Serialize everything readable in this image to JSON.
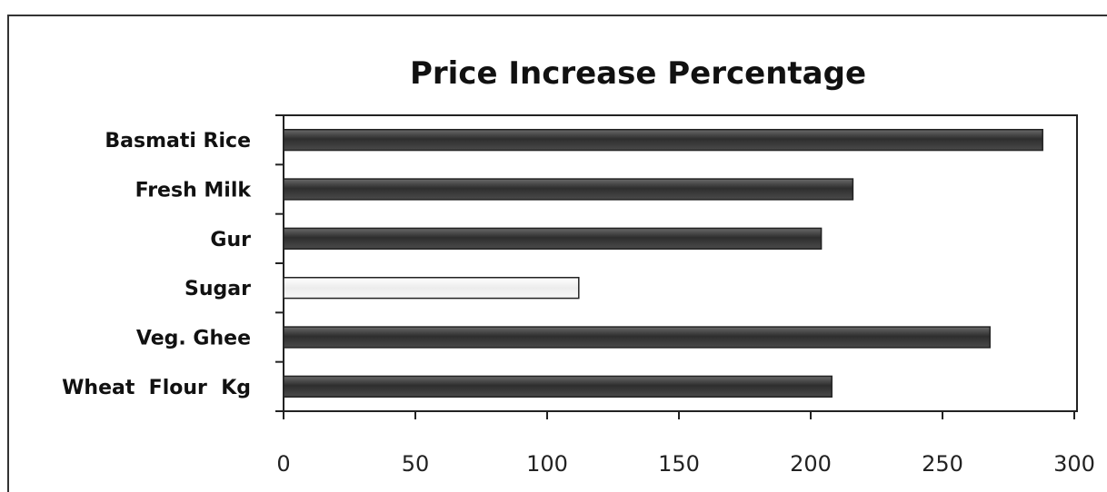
{
  "chart_data": {
    "type": "bar",
    "orientation": "horizontal",
    "title": "Price Increase Percentage",
    "categories": [
      "Basmati Rice",
      "Fresh Milk",
      "Gur",
      "Sugar",
      "Veg. Ghee",
      "Wheat  Flour  Kg"
    ],
    "values": [
      288,
      216,
      204,
      112,
      268,
      208
    ],
    "xlabel": "",
    "ylabel": "",
    "xlim": [
      0,
      300
    ],
    "xticks": [
      "0",
      "50",
      "100",
      "150",
      "200",
      "250",
      "300"
    ],
    "grid": false,
    "colors": {
      "bar": "#3a3a3a",
      "highlight_bar": "#f4f4f4",
      "axis": "#222222"
    },
    "highlight_index": 3
  }
}
